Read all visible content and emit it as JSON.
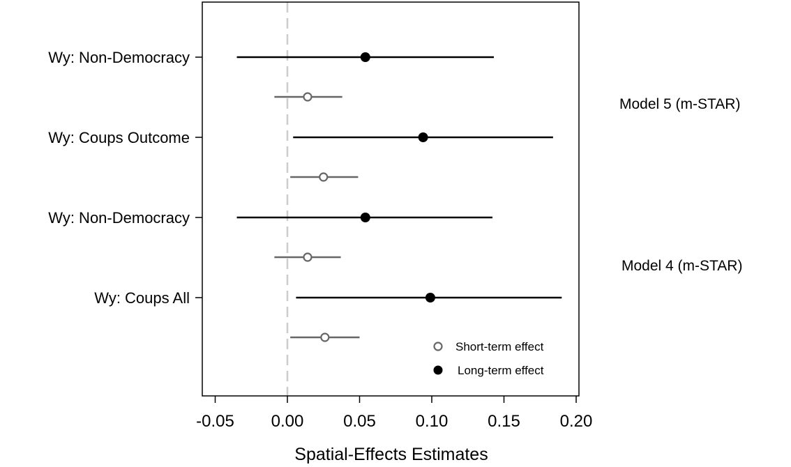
{
  "chart_data": {
    "type": "scatter",
    "subtype": "coefficient-plot",
    "xlabel": "Spatial-Effects Estimates",
    "xlim": [
      -0.06,
      0.205
    ],
    "xticks": [
      -0.05,
      0.0,
      0.05,
      0.1,
      0.15,
      0.2
    ],
    "xtick_labels": [
      "-0.05",
      "0.00",
      "0.05",
      "0.10",
      "0.15",
      "0.20"
    ],
    "grid": false,
    "reference_line": {
      "x": 0.0,
      "style": "dashed",
      "color": "#cccccc"
    },
    "legend": {
      "placement": "bottom-right",
      "entries": [
        "Short-term effect",
        "Long-term effect"
      ]
    },
    "variables": [
      {
        "label": "Wy: Non-Democracy",
        "model": "Model 5 (m-STAR)",
        "long_term": {
          "estimate": 0.054,
          "lower": -0.035,
          "upper": 0.143
        },
        "short_term": {
          "estimate": 0.014,
          "lower": -0.009,
          "upper": 0.038
        }
      },
      {
        "label": "Wy: Coups Outcome",
        "model": "Model 5 (m-STAR)",
        "long_term": {
          "estimate": 0.094,
          "lower": 0.004,
          "upper": 0.184
        },
        "short_term": {
          "estimate": 0.025,
          "lower": 0.002,
          "upper": 0.049
        }
      },
      {
        "label": "Wy: Non-Democracy",
        "model": "Model 4 (m-STAR)",
        "long_term": {
          "estimate": 0.054,
          "lower": -0.035,
          "upper": 0.142
        },
        "short_term": {
          "estimate": 0.014,
          "lower": -0.009,
          "upper": 0.037
        }
      },
      {
        "label": "Wy: Coups All",
        "model": "Model 4 (m-STAR)",
        "long_term": {
          "estimate": 0.099,
          "lower": 0.006,
          "upper": 0.19
        },
        "short_term": {
          "estimate": 0.026,
          "lower": 0.002,
          "upper": 0.05
        }
      }
    ],
    "model_labels": [
      "Model 5 (m-STAR)",
      "Model 4 (m-STAR)"
    ],
    "colors": {
      "long_term": "#000000",
      "short_term": "#666666",
      "zero_line": "#cccccc"
    }
  }
}
